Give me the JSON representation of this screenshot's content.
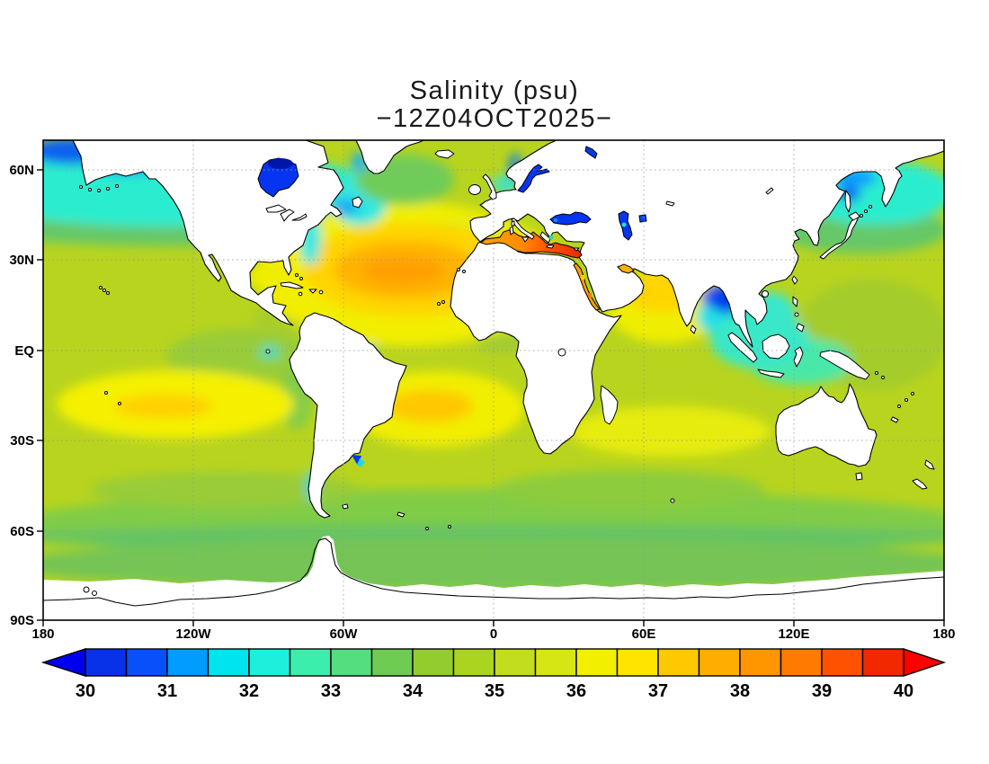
{
  "title": {
    "line1": "Salinity (psu)",
    "line2": "−12Z04OCT2025−"
  },
  "map": {
    "lat_labels": [
      "60N",
      "30N",
      "EQ",
      "30S",
      "60S",
      "90S"
    ],
    "lon_labels": [
      "180",
      "120W",
      "60W",
      "0",
      "60E",
      "120E",
      "180"
    ]
  },
  "colorbar": {
    "tick_labels": [
      "30",
      "31",
      "32",
      "33",
      "34",
      "35",
      "36",
      "37",
      "38",
      "39",
      "40"
    ],
    "segment_colors": [
      "#0832E8",
      "#0850FA",
      "#009CFF",
      "#00E4F0",
      "#1CF0DC",
      "#3CEEAC",
      "#54DE80",
      "#6ECC52",
      "#92CC2E",
      "#AAD420",
      "#C2DC1E",
      "#D6E614",
      "#F2F000",
      "#FFE400",
      "#FFC800",
      "#FFAE00",
      "#FF9600",
      "#FF7A00",
      "#FF5200",
      "#F22800"
    ],
    "arrow_left_color": "#0000EE",
    "arrow_right_color": "#FF0000"
  },
  "chart_data": {
    "type": "heatmap",
    "subtype": "filled_contour_world_map",
    "title": "Salinity (psu)",
    "subtitle": "−12Z04OCT2025−",
    "variable": "sea surface salinity",
    "units": "psu",
    "valid_time": "12Z 04 OCT 2025",
    "projection": "equirectangular (lat/lon)",
    "x_axis": {
      "labels": [
        "180",
        "120W",
        "60W",
        "0",
        "60E",
        "120E",
        "180"
      ]
    },
    "y_axis": {
      "labels": [
        "60N",
        "30N",
        "EQ",
        "30S",
        "60S",
        "90S"
      ]
    },
    "grid": "dotted gridlines every 30 degrees",
    "scale": {
      "min": 30,
      "max": 40,
      "contour_interval": 0.5,
      "tick_labels": [
        30,
        31,
        32,
        33,
        34,
        35,
        36,
        37,
        38,
        39,
        40
      ],
      "segment_starts": [
        30,
        30.5,
        31,
        31.5,
        32,
        32.5,
        33,
        33.5,
        34,
        34.5,
        35,
        35.5,
        36,
        36.5,
        37,
        37.5,
        38,
        38.5,
        39,
        39.5
      ]
    },
    "readings": [
      {
        "region": "North Atlantic subtropical gyre",
        "approx_psu": 37.3
      },
      {
        "region": "South Atlantic subtropical gyre",
        "approx_psu": 37.0
      },
      {
        "region": "South Pacific subtropical gyre",
        "approx_psu": 36.6
      },
      {
        "region": "Western Mediterranean",
        "approx_psu": 38.3
      },
      {
        "region": "Eastern Mediterranean",
        "approx_psu": 39.6
      },
      {
        "region": "Red Sea",
        "approx_psu": 38.8
      },
      {
        "region": "Persian Gulf",
        "approx_psu": 38.0
      },
      {
        "region": "Arabian Sea",
        "approx_psu": 36.6
      },
      {
        "region": "Bay of Bengal head",
        "approx_psu": 30.8
      },
      {
        "region": "North Pacific subpolar band",
        "approx_psu": 32.7
      },
      {
        "region": "Bering Sea / Alaska coast",
        "approx_psu": 30.8
      },
      {
        "region": "Hudson Bay",
        "approx_psu": 30.0
      },
      {
        "region": "Baltic Sea",
        "approx_psu": 30.0
      },
      {
        "region": "Black Sea",
        "approx_psu": 30.2
      },
      {
        "region": "Caspian Sea",
        "approx_psu": 30.3
      },
      {
        "region": "Southeast Asian seas",
        "approx_psu": 32.5
      },
      {
        "region": "Southern Ocean band",
        "approx_psu": 34.1
      },
      {
        "region": "Tropical Pacific background",
        "approx_psu": 35.0
      },
      {
        "region": "Rio de la Plata estuary",
        "approx_psu": 30.5
      },
      {
        "region": "Antarctic margin",
        "approx_psu": null
      }
    ]
  }
}
